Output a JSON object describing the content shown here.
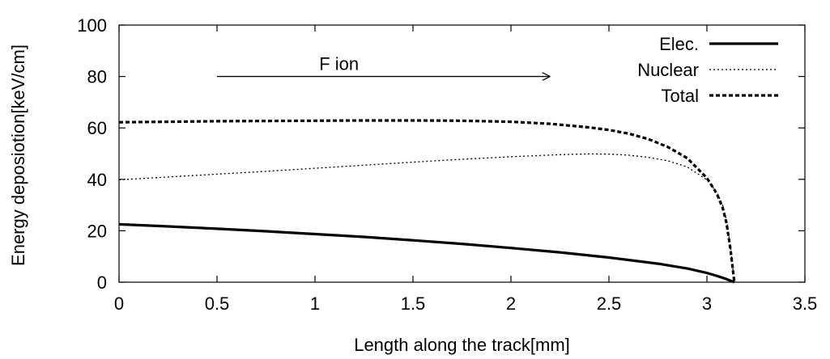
{
  "chart_data": {
    "type": "line",
    "title": "",
    "xlabel": "Length along the track[mm]",
    "ylabel": "Energy deposiotion[keV/cm]",
    "xlim": [
      0,
      3.5
    ],
    "ylim": [
      0,
      100
    ],
    "xticks": [
      "0",
      "0.5",
      "1",
      "1.5",
      "2",
      "2.5",
      "3",
      "3.5"
    ],
    "yticks": [
      "0",
      "20",
      "40",
      "60",
      "80",
      "100"
    ],
    "grid": false,
    "legend_position": "top-right",
    "series": [
      {
        "name": "Elec.",
        "style": "solid-thick",
        "color": "#000000",
        "x": [
          0,
          0.25,
          0.5,
          0.75,
          1.0,
          1.25,
          1.5,
          1.75,
          2.0,
          2.25,
          2.5,
          2.75,
          2.9,
          3.0,
          3.05,
          3.1,
          3.14
        ],
        "y": [
          22.5,
          21.7,
          20.8,
          19.8,
          18.7,
          17.6,
          16.3,
          14.9,
          13.3,
          11.6,
          9.6,
          7.2,
          5.3,
          3.6,
          2.5,
          1.2,
          0
        ]
      },
      {
        "name": "Nuclear",
        "style": "dotted",
        "color": "#000000",
        "x": [
          0,
          0.25,
          0.5,
          0.75,
          1.0,
          1.25,
          1.5,
          1.75,
          2.0,
          2.25,
          2.4,
          2.5,
          2.6,
          2.7,
          2.8,
          2.9,
          3.0,
          3.05,
          3.08,
          3.1,
          3.12,
          3.14
        ],
        "y": [
          39.8,
          40.9,
          42.0,
          43.1,
          44.3,
          45.5,
          46.7,
          47.8,
          48.8,
          49.6,
          49.9,
          49.8,
          49.4,
          48.6,
          47.2,
          44.8,
          39.8,
          35.0,
          30.0,
          24.0,
          14.0,
          0
        ]
      },
      {
        "name": "Total",
        "style": "dashed",
        "color": "#000000",
        "x": [
          0,
          0.25,
          0.5,
          0.75,
          1.0,
          1.25,
          1.5,
          1.75,
          2.0,
          2.2,
          2.4,
          2.5,
          2.6,
          2.7,
          2.8,
          2.9,
          3.0,
          3.05,
          3.08,
          3.1,
          3.12,
          3.14
        ],
        "y": [
          62.2,
          62.4,
          62.6,
          62.7,
          62.8,
          62.9,
          62.9,
          62.8,
          62.4,
          61.6,
          60.2,
          59.2,
          57.8,
          55.7,
          52.6,
          48.2,
          40.5,
          34.5,
          29.0,
          23.0,
          13.0,
          0
        ]
      }
    ],
    "annotations": [
      {
        "text": "F ion",
        "arrow": {
          "x_start": 0.5,
          "x_end": 2.2,
          "y": 80
        }
      }
    ]
  }
}
